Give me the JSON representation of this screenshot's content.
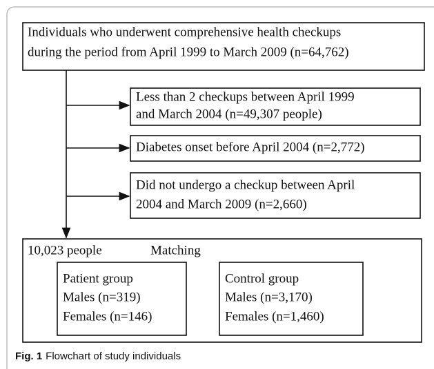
{
  "source": {
    "lines": [
      "Individuals who underwent comprehensive health checkups",
      "during the period from April 1999 to March 2009 (n=64,762)"
    ]
  },
  "exclusions": [
    {
      "lines": [
        "Less than 2 checkups between April 1999",
        "and March 2004 (n=49,307 people)"
      ]
    },
    {
      "lines": [
        "Diabetes onset before April 2004 (n=2,772)"
      ]
    },
    {
      "lines": [
        "Did not undergo a checkup between April",
        "2004 and March 2009 (n=2,660)"
      ]
    }
  ],
  "result": {
    "count": "10,023 people",
    "method": "Matching",
    "groups": [
      {
        "lines": [
          "Patient group",
          "Males (n=319)",
          "Females (n=146)"
        ]
      },
      {
        "lines": [
          "Control group",
          "Males (n=3,170)",
          "Females (n=1,460)"
        ]
      }
    ]
  },
  "caption": {
    "label": "Fig. 1",
    "text": "Flowchart of study individuals"
  }
}
